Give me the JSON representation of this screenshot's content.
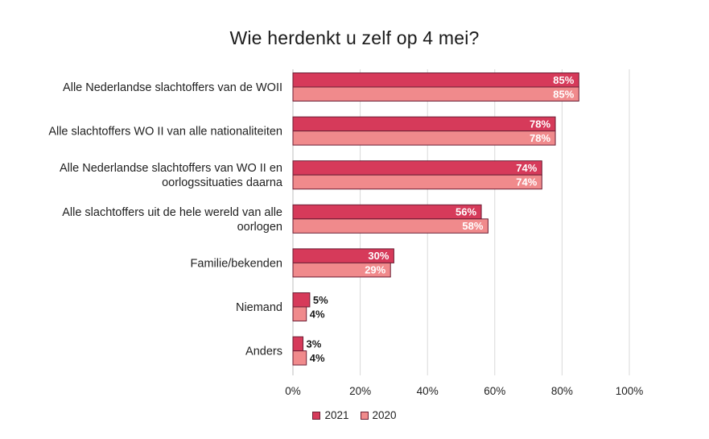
{
  "chart_data": {
    "type": "bar",
    "orientation": "horizontal",
    "title": "Wie herdenkt u zelf op 4 mei?",
    "categories": [
      [
        "Alle Nederlandse slachtoffers van de WOII"
      ],
      [
        "Alle slachtoffers WO II van alle nationaliteiten"
      ],
      [
        "Alle Nederlandse slachtoffers van WO II en",
        "oorlogssituaties daarna"
      ],
      [
        "Alle slachtoffers uit de hele wereld van alle",
        "oorlogen"
      ],
      [
        "Familie/bekenden"
      ],
      [
        "Niemand"
      ],
      [
        "Anders"
      ]
    ],
    "series": [
      {
        "name": "2021",
        "color": "#d63a5a",
        "border": "#6b1f35",
        "values": [
          85,
          78,
          74,
          56,
          30,
          5,
          3
        ]
      },
      {
        "name": "2020",
        "color": "#f08a8c",
        "border": "#6b1f35",
        "values": [
          85,
          78,
          74,
          58,
          29,
          4,
          4
        ]
      }
    ],
    "data_labels": [
      [
        "85%",
        "78%",
        "74%",
        "56%",
        "30%",
        "5%",
        "3%"
      ],
      [
        "85%",
        "78%",
        "74%",
        "58%",
        "29%",
        "4%",
        "4%"
      ]
    ],
    "xlim": [
      0,
      100
    ],
    "xticks": [
      "0%",
      "20%",
      "40%",
      "60%",
      "80%",
      "100%"
    ],
    "grid": true,
    "legend_position": "bottom"
  }
}
